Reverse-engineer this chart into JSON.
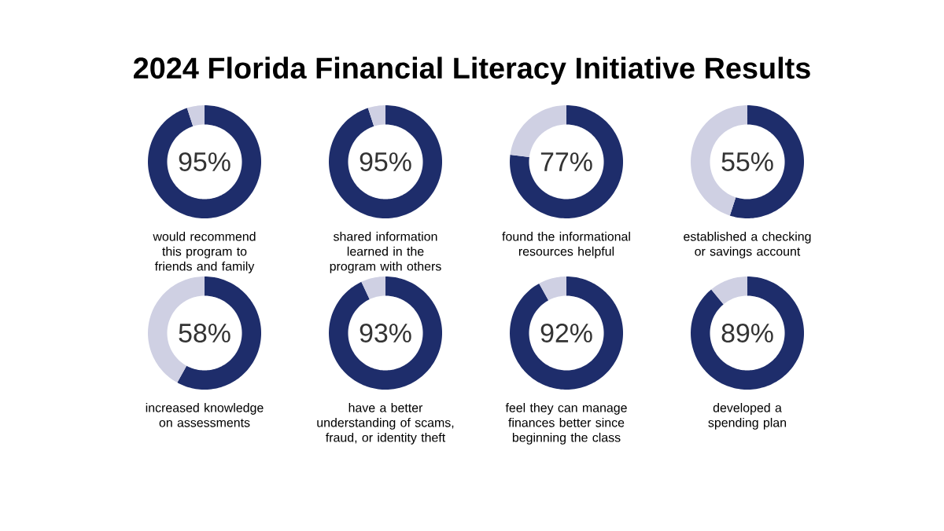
{
  "chart_data": [
    {
      "type": "donut",
      "title": "2024 Florida Financial Literacy Initiative Results",
      "categories": [
        null,
        null
      ],
      "values": [
        95,
        5
      ],
      "colors": [
        "#1e2d6b",
        "#cfd0e3"
      ],
      "value_labels": [
        "95%",
        null
      ],
      "annotations": [
        "would recommend this program to friends and family"
      ]
    },
    {
      "type": "donut",
      "categories": [
        null,
        null
      ],
      "values": [
        95,
        5
      ],
      "colors": [
        "#1e2d6b",
        "#cfd0e3"
      ],
      "value_labels": [
        "95%",
        null
      ],
      "annotations": [
        "shared information learned in the program with others"
      ]
    },
    {
      "type": "donut",
      "categories": [
        null,
        null
      ],
      "values": [
        77,
        23
      ],
      "colors": [
        "#1e2d6b",
        "#cfd0e3"
      ],
      "value_labels": [
        "77%",
        null
      ],
      "annotations": [
        "found the informational resources helpful"
      ]
    },
    {
      "type": "donut",
      "categories": [
        null,
        null
      ],
      "values": [
        55,
        45
      ],
      "colors": [
        "#1e2d6b",
        "#cfd0e3"
      ],
      "value_labels": [
        "55%",
        null
      ],
      "annotations": [
        "established a checking or savings account"
      ]
    },
    {
      "type": "donut",
      "categories": [
        null,
        null
      ],
      "values": [
        58,
        42
      ],
      "colors": [
        "#1e2d6b",
        "#cfd0e3"
      ],
      "value_labels": [
        "58%",
        null
      ],
      "annotations": [
        "increased knowledge on assessments"
      ]
    },
    {
      "type": "donut",
      "categories": [
        null,
        null
      ],
      "values": [
        93,
        7
      ],
      "colors": [
        "#1e2d6b",
        "#cfd0e3"
      ],
      "value_labels": [
        "93%",
        null
      ],
      "annotations": [
        "have a better understanding of scams, fraud, or identity theft"
      ]
    },
    {
      "type": "donut",
      "categories": [
        null,
        null
      ],
      "values": [
        92,
        8
      ],
      "colors": [
        "#1e2d6b",
        "#cfd0e3"
      ],
      "value_labels": [
        "92%",
        null
      ],
      "annotations": [
        "feel they can manage finances better since beginning the class"
      ]
    },
    {
      "type": "donut",
      "categories": [
        null,
        null
      ],
      "values": [
        89,
        11
      ],
      "colors": [
        "#1e2d6b",
        "#cfd0e3"
      ],
      "value_labels": [
        "89%",
        null
      ],
      "annotations": [
        "developed a spending plan"
      ]
    }
  ]
}
